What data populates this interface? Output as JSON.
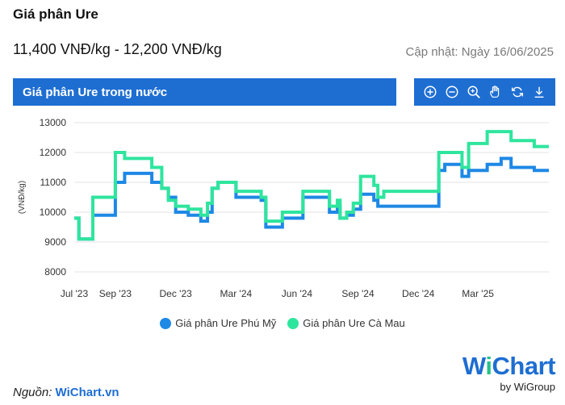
{
  "page": {
    "title": "Giá phân Ure",
    "price_range": "11,400 VNĐ/kg - 12,200 VNĐ/kg",
    "updated": "Cập nhật: Ngày 16/06/2025"
  },
  "chart_header": {
    "title": "Giá phân Ure trong nước"
  },
  "toolbar": {
    "icons": [
      "zoom-in-icon",
      "zoom-out-icon",
      "zoom-select-icon",
      "pan-hand-icon",
      "reset-icon",
      "download-icon"
    ],
    "color": "#1e6ed2"
  },
  "source": {
    "prefix": "Nguồn:",
    "link": "WiChart.vn"
  },
  "logo": {
    "w": "W",
    "i": "i",
    "rest": "Chart",
    "by": "by WiGroup"
  },
  "chart_data": {
    "type": "line",
    "step": true,
    "ylabel": "(VNĐ/kg)",
    "xlabel": "",
    "ylim": [
      8000,
      13000
    ],
    "yticks": [
      8000,
      9000,
      10000,
      11000,
      12000,
      13000
    ],
    "xlim": [
      "2023-07-01",
      "2025-06-16"
    ],
    "xticks": [
      {
        "label": "Jul '23",
        "date": "2023-07-01"
      },
      {
        "label": "Sep '23",
        "date": "2023-09-01"
      },
      {
        "label": "Dec '23",
        "date": "2023-12-01"
      },
      {
        "label": "Mar '24",
        "date": "2024-03-01"
      },
      {
        "label": "Jun '24",
        "date": "2024-06-01"
      },
      {
        "label": "Sep '24",
        "date": "2024-09-01"
      },
      {
        "label": "Dec '24",
        "date": "2024-12-01"
      },
      {
        "label": "Mar '25",
        "date": "2025-03-01"
      }
    ],
    "grid": true,
    "legend_position": "bottom",
    "series": [
      {
        "name": "Giá phân Ure Phú Mỹ",
        "color": "#1e88e5",
        "points": [
          [
            "2023-07-01",
            9800
          ],
          [
            "2023-07-08",
            9100
          ],
          [
            "2023-07-29",
            9900
          ],
          [
            "2023-09-01",
            11000
          ],
          [
            "2023-09-15",
            11300
          ],
          [
            "2023-10-26",
            11000
          ],
          [
            "2023-11-10",
            10800
          ],
          [
            "2023-11-20",
            10500
          ],
          [
            "2023-12-01",
            10000
          ],
          [
            "2023-12-20",
            9900
          ],
          [
            "2024-01-08",
            9700
          ],
          [
            "2024-01-18",
            10000
          ],
          [
            "2024-01-25",
            10800
          ],
          [
            "2024-02-03",
            11000
          ],
          [
            "2024-03-01",
            10500
          ],
          [
            "2024-04-08",
            10400
          ],
          [
            "2024-04-15",
            9500
          ],
          [
            "2024-05-10",
            9800
          ],
          [
            "2024-06-10",
            10500
          ],
          [
            "2024-07-20",
            10000
          ],
          [
            "2024-08-01",
            10200
          ],
          [
            "2024-08-05",
            9800
          ],
          [
            "2024-08-15",
            9900
          ],
          [
            "2024-08-25",
            10100
          ],
          [
            "2024-09-05",
            10600
          ],
          [
            "2024-09-25",
            10400
          ],
          [
            "2024-10-01",
            10200
          ],
          [
            "2024-10-10",
            10200
          ],
          [
            "2024-12-01",
            10200
          ],
          [
            "2025-01-01",
            11400
          ],
          [
            "2025-01-10",
            11600
          ],
          [
            "2025-02-05",
            11200
          ],
          [
            "2025-02-15",
            11400
          ],
          [
            "2025-03-15",
            11600
          ],
          [
            "2025-04-05",
            11800
          ],
          [
            "2025-04-20",
            11500
          ],
          [
            "2025-05-25",
            11400
          ]
        ]
      },
      {
        "name": "Giá phân Ure Cà Mau",
        "color": "#2ee59d",
        "points": [
          [
            "2023-07-01",
            9800
          ],
          [
            "2023-07-08",
            9100
          ],
          [
            "2023-07-29",
            10500
          ],
          [
            "2023-09-01",
            12000
          ],
          [
            "2023-09-15",
            11800
          ],
          [
            "2023-10-26",
            11500
          ],
          [
            "2023-11-10",
            10800
          ],
          [
            "2023-11-20",
            10400
          ],
          [
            "2023-12-01",
            10200
          ],
          [
            "2023-12-20",
            10100
          ],
          [
            "2024-01-08",
            9900
          ],
          [
            "2024-01-18",
            10300
          ],
          [
            "2024-01-25",
            10800
          ],
          [
            "2024-02-03",
            11000
          ],
          [
            "2024-03-01",
            10700
          ],
          [
            "2024-04-08",
            10500
          ],
          [
            "2024-04-15",
            9700
          ],
          [
            "2024-05-10",
            10000
          ],
          [
            "2024-06-10",
            10700
          ],
          [
            "2024-07-20",
            10200
          ],
          [
            "2024-08-01",
            10400
          ],
          [
            "2024-08-05",
            9800
          ],
          [
            "2024-08-15",
            10000
          ],
          [
            "2024-08-25",
            10300
          ],
          [
            "2024-09-05",
            11200
          ],
          [
            "2024-09-25",
            10900
          ],
          [
            "2024-10-01",
            10500
          ],
          [
            "2024-10-10",
            10700
          ],
          [
            "2024-12-01",
            10700
          ],
          [
            "2025-01-01",
            12000
          ],
          [
            "2025-01-10",
            12000
          ],
          [
            "2025-02-05",
            11500
          ],
          [
            "2025-02-15",
            12300
          ],
          [
            "2025-03-15",
            12700
          ],
          [
            "2025-04-05",
            12700
          ],
          [
            "2025-04-20",
            12400
          ],
          [
            "2025-05-25",
            12200
          ]
        ]
      }
    ]
  }
}
